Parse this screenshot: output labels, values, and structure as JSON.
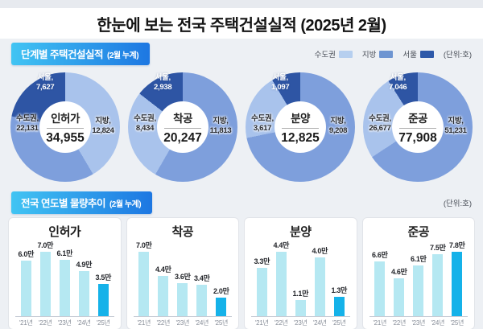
{
  "page": {
    "title": "한눈에 보는 전국 주택건설실적  (2025년 2월)"
  },
  "section1": {
    "header": "단계별 주택건설실적",
    "header_sub": "(2월 누계)",
    "unit": "(단위:호)",
    "legend": [
      {
        "label": "수도권",
        "color": "#b6cfef"
      },
      {
        "label": "지방",
        "color": "#6e95d1"
      },
      {
        "label": "서울",
        "color": "#2e59a9"
      }
    ]
  },
  "section2": {
    "header": "전국 연도별 물량추이",
    "header_sub": "(2월 누계)",
    "unit": "(단위:호)"
  },
  "colors": {
    "donut_sudogwon": "#a9c3ec",
    "donut_jibang": "#7e9fdc",
    "donut_seoul": "#2e55a4",
    "bar": "#b5e8f2",
    "bar_highlight": "#15b2e9"
  },
  "chart_data": [
    {
      "type": "pie",
      "title": "인허가",
      "total": 34955,
      "total_display": "34,955",
      "seoul_subset_of_sudogwon": true,
      "slices": [
        {
          "label": "수도권",
          "value": 22131,
          "display": "22,131"
        },
        {
          "label": "지방",
          "value": 12824,
          "display": "12,824"
        },
        {
          "label": "서울",
          "value": 7627,
          "display": "7,627"
        }
      ]
    },
    {
      "type": "pie",
      "title": "착공",
      "total": 20247,
      "total_display": "20,247",
      "seoul_subset_of_sudogwon": true,
      "slices": [
        {
          "label": "수도권",
          "value": 8434,
          "display": "8,434"
        },
        {
          "label": "지방",
          "value": 11813,
          "display": "11,813"
        },
        {
          "label": "서울",
          "value": 2938,
          "display": "2,938"
        }
      ]
    },
    {
      "type": "pie",
      "title": "분양",
      "total": 12825,
      "total_display": "12,825",
      "seoul_subset_of_sudogwon": true,
      "slices": [
        {
          "label": "수도권",
          "value": 3617,
          "display": "3,617"
        },
        {
          "label": "지방",
          "value": 9208,
          "display": "9,208"
        },
        {
          "label": "서울",
          "value": 1097,
          "display": "1,097"
        }
      ]
    },
    {
      "type": "pie",
      "title": "준공",
      "total": 77908,
      "total_display": "77,908",
      "seoul_subset_of_sudogwon": true,
      "slices": [
        {
          "label": "수도권",
          "value": 26677,
          "display": "26,677"
        },
        {
          "label": "지방",
          "value": 51231,
          "display": "51,231"
        },
        {
          "label": "서울",
          "value": 7046,
          "display": "7,046"
        }
      ]
    },
    {
      "type": "bar",
      "title": "인허가",
      "categories": [
        "'21년",
        "'22년",
        "'23년",
        "'24년",
        "'25년"
      ],
      "values": [
        6.0,
        7.0,
        6.1,
        4.9,
        3.5
      ],
      "labels": [
        "6.0만",
        "7.0만",
        "6.1만",
        "4.9만",
        "3.5만"
      ],
      "highlight_index": 4
    },
    {
      "type": "bar",
      "title": "착공",
      "categories": [
        "'21년",
        "'22년",
        "'23년",
        "'24년",
        "'25년"
      ],
      "values": [
        7.0,
        4.4,
        3.6,
        3.4,
        2.0
      ],
      "labels": [
        "7.0만",
        "4.4만",
        "3.6만",
        "3.4만",
        "2.0만"
      ],
      "highlight_index": 4
    },
    {
      "type": "bar",
      "title": "분양",
      "categories": [
        "'21년",
        "'22년",
        "'23년",
        "'24년",
        "'25년"
      ],
      "values": [
        3.3,
        4.4,
        1.1,
        4.0,
        1.3
      ],
      "labels": [
        "3.3만",
        "4.4만",
        "1.1만",
        "4.0만",
        "1.3만"
      ],
      "highlight_index": 4
    },
    {
      "type": "bar",
      "title": "준공",
      "categories": [
        "'21년",
        "'22년",
        "'23년",
        "'24년",
        "'25년"
      ],
      "values": [
        6.6,
        4.6,
        6.1,
        7.5,
        7.8
      ],
      "labels": [
        "6.6만",
        "4.6만",
        "6.1만",
        "7.5만",
        "7.8만"
      ],
      "highlight_index": 4
    }
  ]
}
